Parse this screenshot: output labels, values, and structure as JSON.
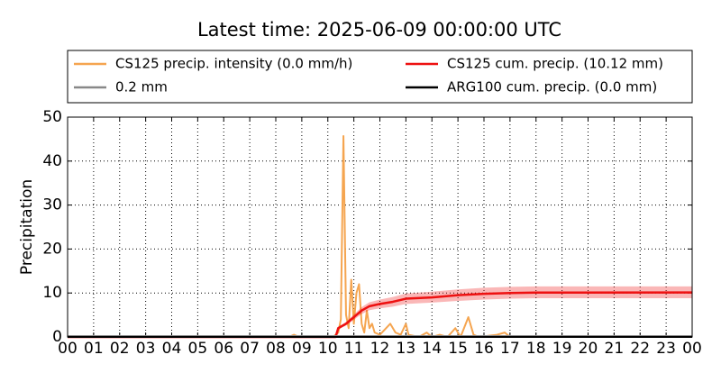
{
  "chart_data": {
    "type": "line",
    "title": "Latest time: 2025-06-09 00:00:00 UTC",
    "y_label": "Precipitation",
    "xlim": [
      0,
      24
    ],
    "ylim": [
      0,
      50
    ],
    "grid": true,
    "xticks": [
      {
        "value": 0,
        "label": "00"
      },
      {
        "value": 1,
        "label": "01"
      },
      {
        "value": 2,
        "label": "02"
      },
      {
        "value": 3,
        "label": "03"
      },
      {
        "value": 4,
        "label": "04"
      },
      {
        "value": 5,
        "label": "05"
      },
      {
        "value": 6,
        "label": "06"
      },
      {
        "value": 7,
        "label": "07"
      },
      {
        "value": 8,
        "label": "08"
      },
      {
        "value": 9,
        "label": "09"
      },
      {
        "value": 10,
        "label": "10"
      },
      {
        "value": 11,
        "label": "11"
      },
      {
        "value": 12,
        "label": "12"
      },
      {
        "value": 13,
        "label": "13"
      },
      {
        "value": 14,
        "label": "14"
      },
      {
        "value": 15,
        "label": "15"
      },
      {
        "value": 16,
        "label": "16"
      },
      {
        "value": 17,
        "label": "17"
      },
      {
        "value": 18,
        "label": "18"
      },
      {
        "value": 19,
        "label": "19"
      },
      {
        "value": 20,
        "label": "20"
      },
      {
        "value": 21,
        "label": "21"
      },
      {
        "value": 22,
        "label": "22"
      },
      {
        "value": 23,
        "label": "23"
      },
      {
        "value": 24,
        "label": "00"
      }
    ],
    "yticks": [
      0,
      10,
      20,
      30,
      40,
      50
    ],
    "series": [
      {
        "name": "CS125 precip. intensity (0.0 mm/h)",
        "color": "#f5a550",
        "width": 2,
        "x": [
          0,
          8.5,
          8.7,
          8.9,
          10.2,
          10.4,
          10.5,
          10.6,
          10.7,
          10.8,
          10.9,
          11.0,
          11.1,
          11.2,
          11.3,
          11.4,
          11.5,
          11.6,
          11.7,
          11.8,
          12.0,
          12.4,
          12.6,
          12.8,
          13.0,
          13.1,
          13.5,
          13.8,
          14.0,
          14.3,
          14.6,
          14.9,
          15.1,
          15.4,
          15.6,
          15.8,
          16.5,
          16.8,
          17.0,
          18,
          24
        ],
        "values": [
          0,
          0,
          0.5,
          0,
          0,
          1,
          4,
          45.7,
          5,
          2,
          13,
          3,
          10,
          12,
          3,
          1,
          6,
          2,
          3,
          1,
          0.5,
          3,
          1,
          0.5,
          3,
          0.5,
          0,
          1,
          0,
          0.5,
          0,
          2,
          0,
          4.5,
          0.5,
          0,
          0.5,
          1,
          0,
          0,
          0
        ]
      },
      {
        "name": "CS125 cum. precip. (10.12 mm)",
        "color": "#ee1111",
        "width": 2.5,
        "x": [
          0,
          10.3,
          10.4,
          10.7,
          11.0,
          11.3,
          11.6,
          12,
          12.5,
          13,
          14,
          15,
          16,
          17,
          18,
          24
        ],
        "values": [
          0,
          0,
          2,
          3,
          4.5,
          6,
          7,
          7.5,
          8,
          8.7,
          9,
          9.5,
          9.8,
          10,
          10.1,
          10.12
        ],
        "band": {
          "color": "#ee1111",
          "upper": [
            0,
            0,
            2.3,
            3.4,
            5.1,
            6.8,
            7.9,
            8.5,
            9.1,
            9.9,
            10.3,
            10.8,
            11.2,
            11.4,
            11.5,
            11.5
          ],
          "lower": [
            0,
            0,
            1.7,
            2.6,
            3.9,
            5.2,
            6.1,
            6.5,
            6.9,
            7.5,
            7.8,
            8.2,
            8.5,
            8.7,
            8.8,
            8.8
          ]
        }
      },
      {
        "name": "0.2 mm",
        "color": "#888888",
        "width": 2,
        "x": [
          0,
          24
        ],
        "values": [
          0.2,
          0.2
        ]
      },
      {
        "name": "ARG100 cum. precip. (0.0 mm)",
        "color": "#000000",
        "width": 2,
        "x": [
          0,
          24
        ],
        "values": [
          0,
          0
        ]
      }
    ]
  }
}
